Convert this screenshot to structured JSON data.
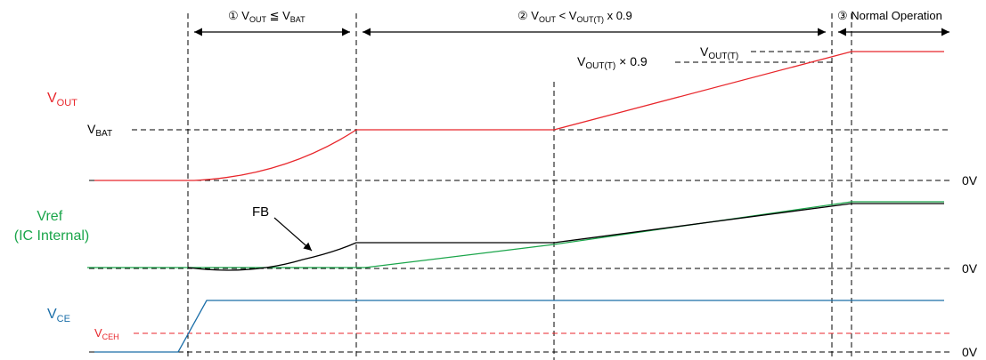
{
  "phases": {
    "p1": {
      "num": "①",
      "lhs": "V",
      "lhs_sub": "OUT",
      "op": "≦",
      "rhs": "V",
      "rhs_sub": "BAT"
    },
    "p2": {
      "num": "②",
      "lhs": "V",
      "lhs_sub": "OUT",
      "op": "<",
      "rhs": "V",
      "rhs_sub": "OUT(T)",
      "tail": "x 0.9"
    },
    "p3": {
      "num": "③",
      "label": "Normal Operation"
    }
  },
  "signals": {
    "vout": {
      "base": "V",
      "sub": "OUT",
      "color": "#e8262b"
    },
    "vref": {
      "line1": "Vref",
      "line2": "(IC Internal)",
      "color": "#1aa54a"
    },
    "vce": {
      "base": "V",
      "sub": "CE",
      "color": "#1a6ea8"
    },
    "fb": {
      "label": "FB",
      "color": "#000000"
    }
  },
  "levels": {
    "vbat": {
      "base": "V",
      "sub": "BAT"
    },
    "vout_t": {
      "base": "V",
      "sub": "OUT(T)"
    },
    "vout_t_09": {
      "base": "V",
      "sub": "OUT(T)",
      "tail": " × 0.9"
    },
    "vceh": {
      "base": "V",
      "sub": "CEH",
      "color": "#e8262b"
    }
  },
  "zero_labels": [
    "0V",
    "0V",
    "0V"
  ]
}
